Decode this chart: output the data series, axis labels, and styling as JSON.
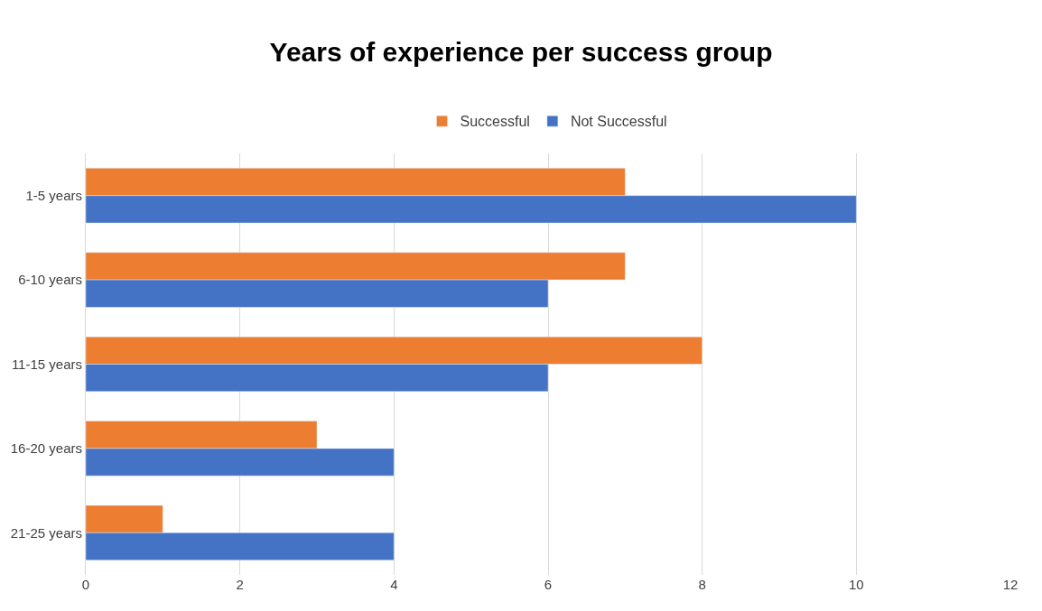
{
  "chart_data": {
    "type": "bar",
    "orientation": "horizontal",
    "title": "Years of experience per success group",
    "categories": [
      "1-5 years",
      "6-10 years",
      "11-15 years",
      "16-20 years",
      "21-25 years"
    ],
    "series": [
      {
        "name": "Successful",
        "color": "#ed7d31",
        "values": [
          7,
          7,
          8,
          3,
          1
        ]
      },
      {
        "name": "Not Successful",
        "color": "#4472c4",
        "values": [
          10,
          6,
          6,
          4,
          4
        ]
      }
    ],
    "xlim": [
      0,
      12
    ],
    "xticks": [
      0,
      2,
      4,
      6,
      8,
      10,
      12
    ],
    "grid": "x",
    "legend": "top"
  }
}
